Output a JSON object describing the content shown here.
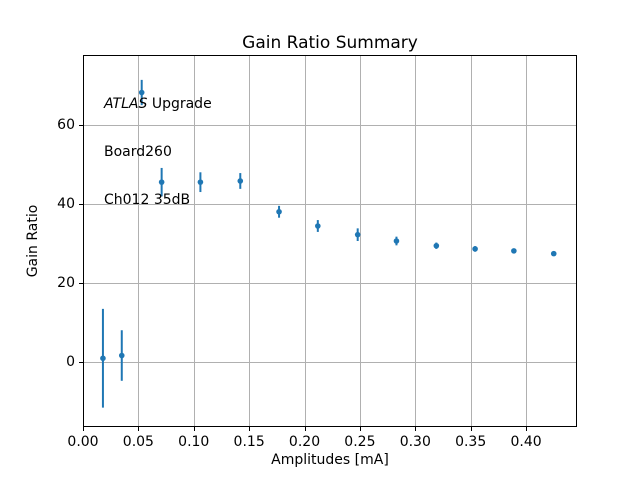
{
  "chart_data": {
    "type": "scatter",
    "title": "Gain Ratio Summary",
    "xlabel": "Amplitudes [mA]",
    "ylabel": "Gain Ratio",
    "annotation": {
      "experiment": "ATLAS",
      "label": " Upgrade",
      "board": "Board260",
      "channel": "Ch012 35dB"
    },
    "colors": {
      "marker": "#1f77b4",
      "grid": "#b0b0b0",
      "spine": "#000000",
      "background": "#ffffff"
    },
    "grid": true,
    "legend": "none",
    "xlim": [
      0.0,
      0.446
    ],
    "ylim": [
      -16.5,
      77.7
    ],
    "x_ticks": [
      {
        "value": 0.0,
        "label": "0.00"
      },
      {
        "value": 0.05,
        "label": "0.05"
      },
      {
        "value": 0.1,
        "label": "0.10"
      },
      {
        "value": 0.15,
        "label": "0.15"
      },
      {
        "value": 0.2,
        "label": "0.20"
      },
      {
        "value": 0.25,
        "label": "0.25"
      },
      {
        "value": 0.3,
        "label": "0.30"
      },
      {
        "value": 0.35,
        "label": "0.35"
      },
      {
        "value": 0.4,
        "label": "0.40"
      }
    ],
    "y_ticks": [
      {
        "value": 0,
        "label": "0"
      },
      {
        "value": 20,
        "label": "20"
      },
      {
        "value": 40,
        "label": "40"
      },
      {
        "value": 60,
        "label": "60"
      }
    ],
    "series": [
      {
        "name": "gain-ratio",
        "marker": "circle",
        "error_bars": true,
        "points": [
          {
            "x": 0.018,
            "y": 0.9,
            "yerr": 12.5
          },
          {
            "x": 0.035,
            "y": 1.6,
            "yerr": 6.4
          },
          {
            "x": 0.053,
            "y": 68.2,
            "yerr": 3.2
          },
          {
            "x": 0.071,
            "y": 45.5,
            "yerr": 3.6
          },
          {
            "x": 0.106,
            "y": 45.5,
            "yerr": 2.5
          },
          {
            "x": 0.142,
            "y": 45.8,
            "yerr": 2.0
          },
          {
            "x": 0.177,
            "y": 38.0,
            "yerr": 1.5
          },
          {
            "x": 0.212,
            "y": 34.4,
            "yerr": 1.5
          },
          {
            "x": 0.248,
            "y": 32.2,
            "yerr": 1.6
          },
          {
            "x": 0.283,
            "y": 30.6,
            "yerr": 1.1
          },
          {
            "x": 0.319,
            "y": 29.4,
            "yerr": 0.8
          },
          {
            "x": 0.354,
            "y": 28.6,
            "yerr": 0.7
          },
          {
            "x": 0.389,
            "y": 28.1,
            "yerr": 0.6
          },
          {
            "x": 0.425,
            "y": 27.4,
            "yerr": 0.6
          }
        ]
      }
    ]
  }
}
